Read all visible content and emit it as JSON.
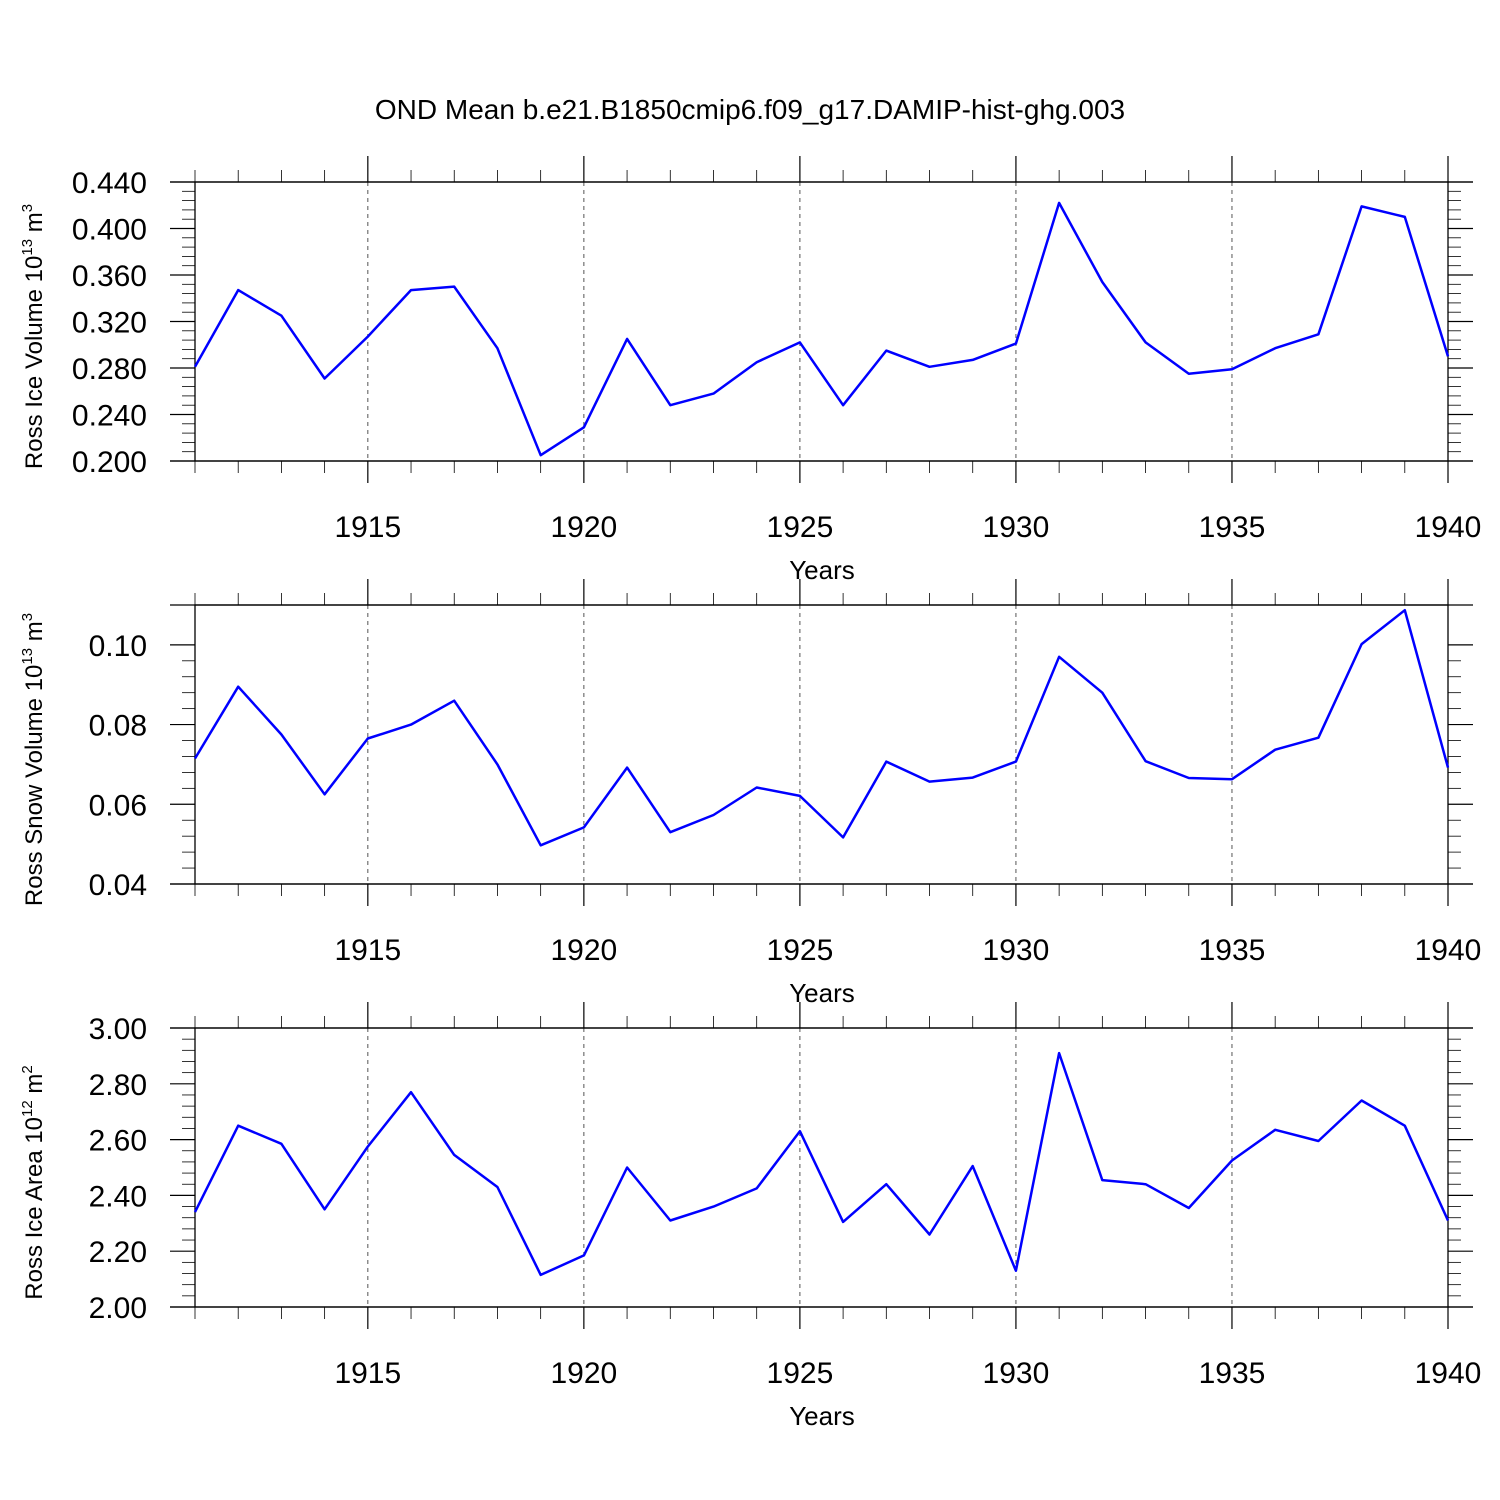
{
  "title": "OND Mean b.e21.B1850cmip6.f09_g17.DAMIP-hist-ghg.003",
  "colors": {
    "series": "#0000ff",
    "axes": "#000000",
    "grid": "#555555"
  },
  "chart_data": [
    {
      "type": "line",
      "ylabel": {
        "prefix": "Ross Ice Volume 10",
        "exp": "13",
        "unit": " m",
        "unit_exp": "3"
      },
      "xlabel": "Years",
      "xlim": [
        1911,
        1940
      ],
      "ylim": [
        0.2,
        0.44
      ],
      "yticks": [
        0.2,
        0.24,
        0.28,
        0.32,
        0.36,
        0.4,
        0.44
      ],
      "ytick_labels": [
        "0.200",
        "0.240",
        "0.280",
        "0.320",
        "0.360",
        "0.400",
        "0.440"
      ],
      "xticks": [
        1915,
        1920,
        1925,
        1930,
        1935,
        1940
      ],
      "xtick_labels": [
        "1915",
        "1920",
        "1925",
        "1930",
        "1935",
        "1940"
      ],
      "grid": "vertical dashed at major x ticks",
      "x": [
        1911,
        1912,
        1913,
        1914,
        1915,
        1916,
        1917,
        1918,
        1919,
        1920,
        1921,
        1922,
        1923,
        1924,
        1925,
        1926,
        1927,
        1928,
        1929,
        1930,
        1931,
        1932,
        1933,
        1934,
        1935,
        1936,
        1937,
        1938,
        1939,
        1940
      ],
      "values": [
        0.281,
        0.347,
        0.325,
        0.271,
        0.307,
        0.347,
        0.35,
        0.297,
        0.205,
        0.229,
        0.305,
        0.248,
        0.258,
        0.285,
        0.302,
        0.248,
        0.295,
        0.281,
        0.287,
        0.301,
        0.422,
        0.354,
        0.302,
        0.275,
        0.279,
        0.297,
        0.309,
        0.419,
        0.41,
        0.29
      ]
    },
    {
      "type": "line",
      "ylabel": {
        "prefix": "Ross Snow Volume 10",
        "exp": "13",
        "unit": " m",
        "unit_exp": "3"
      },
      "xlabel": "Years",
      "xlim": [
        1911,
        1940
      ],
      "ylim": [
        0.04,
        0.11
      ],
      "yticks": [
        0.04,
        0.06,
        0.08,
        0.1
      ],
      "ytick_labels": [
        "0.04",
        "0.06",
        "0.08",
        "0.10"
      ],
      "xticks": [
        1915,
        1920,
        1925,
        1930,
        1935,
        1940
      ],
      "xtick_labels": [
        "1915",
        "1920",
        "1925",
        "1930",
        "1935",
        "1940"
      ],
      "grid": "vertical dashed at major x ticks",
      "x": [
        1911,
        1912,
        1913,
        1914,
        1915,
        1916,
        1917,
        1918,
        1919,
        1920,
        1921,
        1922,
        1923,
        1924,
        1925,
        1926,
        1927,
        1928,
        1929,
        1930,
        1931,
        1932,
        1933,
        1934,
        1935,
        1936,
        1937,
        1938,
        1939,
        1940
      ],
      "values": [
        0.0715,
        0.0895,
        0.0775,
        0.0625,
        0.0765,
        0.08,
        0.086,
        0.07,
        0.0497,
        0.0542,
        0.0692,
        0.053,
        0.0573,
        0.0642,
        0.0621,
        0.0517,
        0.0707,
        0.0657,
        0.0667,
        0.0707,
        0.097,
        0.088,
        0.0708,
        0.0666,
        0.0663,
        0.0737,
        0.0767,
        0.1002,
        0.1087,
        0.0692
      ]
    },
    {
      "type": "line",
      "ylabel": {
        "prefix": "Ross Ice Area 10",
        "exp": "12",
        "unit": " m",
        "unit_exp": "2"
      },
      "xlabel": "Years",
      "xlim": [
        1911,
        1940
      ],
      "ylim": [
        2.0,
        3.0
      ],
      "yticks": [
        2.0,
        2.2,
        2.4,
        2.6,
        2.8,
        3.0
      ],
      "ytick_labels": [
        "2.00",
        "2.20",
        "2.40",
        "2.60",
        "2.80",
        "3.00"
      ],
      "xticks": [
        1915,
        1920,
        1925,
        1930,
        1935,
        1940
      ],
      "xtick_labels": [
        "1915",
        "1920",
        "1925",
        "1930",
        "1935",
        "1940"
      ],
      "grid": "vertical dashed at major x ticks",
      "x": [
        1911,
        1912,
        1913,
        1914,
        1915,
        1916,
        1917,
        1918,
        1919,
        1920,
        1921,
        1922,
        1923,
        1924,
        1925,
        1926,
        1927,
        1928,
        1929,
        1930,
        1931,
        1932,
        1933,
        1934,
        1935,
        1936,
        1937,
        1938,
        1939,
        1940
      ],
      "values": [
        2.34,
        2.65,
        2.585,
        2.35,
        2.575,
        2.77,
        2.545,
        2.43,
        2.115,
        2.185,
        2.5,
        2.31,
        2.36,
        2.425,
        2.63,
        2.305,
        2.44,
        2.26,
        2.505,
        2.13,
        2.91,
        2.455,
        2.44,
        2.355,
        2.525,
        2.635,
        2.595,
        2.74,
        2.65,
        2.31
      ]
    }
  ]
}
